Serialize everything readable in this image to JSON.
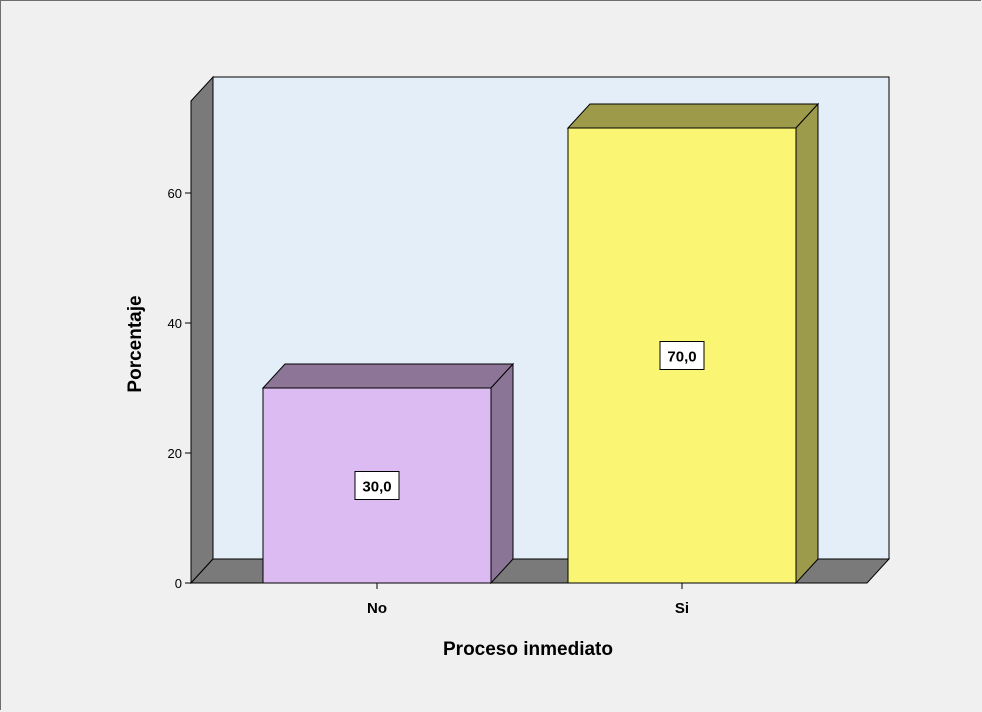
{
  "chart_data": {
    "type": "bar",
    "categories": [
      "No",
      "Si"
    ],
    "values": [
      30.0,
      70.0
    ],
    "data_labels": [
      "30,0",
      "70,0"
    ],
    "title": "",
    "xlabel": "Proceso inmediato",
    "ylabel": "Porcentaje",
    "ylim": [
      0,
      75
    ],
    "yticks": [
      0,
      20,
      40,
      60
    ],
    "ytick_labels": [
      "0",
      "20",
      "40",
      "60"
    ],
    "style": "3d",
    "grid": false,
    "colors": {
      "background": "#f0f0f0",
      "plot_back": "#e3eef9",
      "plot_side": "#7a7a7a",
      "bars": [
        "#dcbbf2",
        "#faf673"
      ],
      "bars_top": [
        "#8c7596",
        "#9d9a4a"
      ],
      "bars_side": [
        "#8b7597",
        "#9c9a4b"
      ]
    }
  }
}
